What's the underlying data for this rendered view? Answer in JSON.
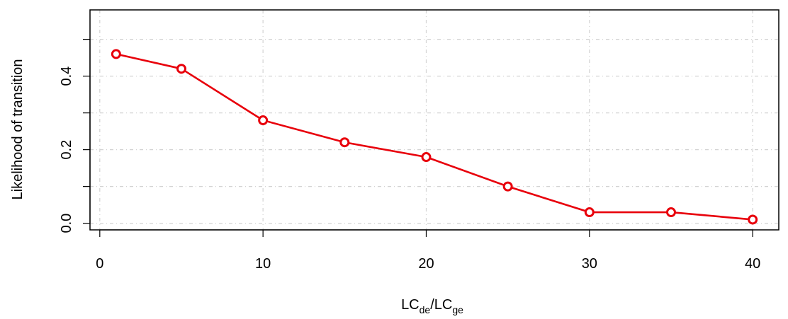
{
  "chart_data": {
    "type": "line",
    "xlabel": {
      "main1": "LC",
      "sub1": "de",
      "slash": "/",
      "main2": "LC",
      "sub2": "ge"
    },
    "ylabel": "Likelihood of transition",
    "xlim": [
      -0.6,
      41.6
    ],
    "ylim": [
      -0.018,
      0.58
    ],
    "x_ticks": [
      0,
      10,
      20,
      30,
      40
    ],
    "x_tick_labels": [
      "0",
      "10",
      "20",
      "30",
      "40"
    ],
    "y_ticks": [
      0.0,
      0.2,
      0.4
    ],
    "y_tick_labels": [
      "0.0",
      "0.2",
      "0.4"
    ],
    "y_minor_ticks": [
      0.1,
      0.3,
      0.5
    ],
    "grid": true,
    "x_grid": [
      0,
      10,
      20,
      30,
      40
    ],
    "y_grid": [
      0.0,
      0.1,
      0.2,
      0.3,
      0.4,
      0.5
    ],
    "series": [
      {
        "x": [
          1,
          5,
          10,
          15,
          20,
          25,
          30,
          35,
          40
        ],
        "y": [
          0.46,
          0.42,
          0.28,
          0.22,
          0.18,
          0.1,
          0.03,
          0.03,
          0.01
        ],
        "color": "#e8000b"
      }
    ]
  }
}
